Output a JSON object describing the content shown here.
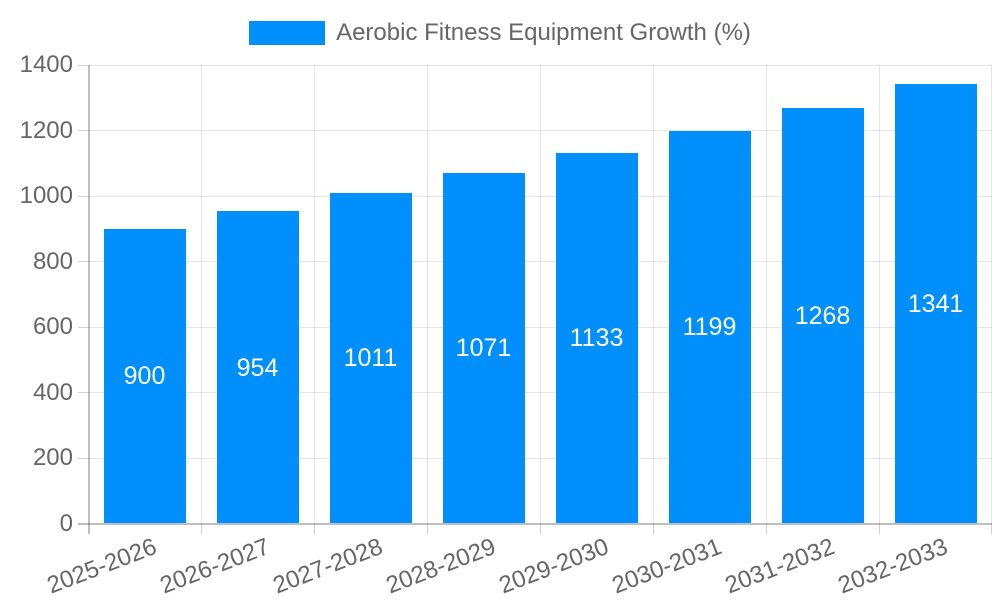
{
  "chart_data": {
    "type": "bar",
    "title": "Aerobic Fitness Equipment Growth (%)",
    "legend": {
      "position": "top",
      "label": "Aerobic Fitness Equipment Growth (%)"
    },
    "categories": [
      "2025-2026",
      "2026-2027",
      "2027-2028",
      "2028-2029",
      "2029-2030",
      "2030-2031",
      "2031-2032",
      "2032-2033"
    ],
    "values": [
      900,
      954,
      1011,
      1071,
      1133,
      1199,
      1268,
      1341
    ],
    "value_labels": [
      "900",
      "954",
      "1011",
      "1071",
      "1133",
      "1199",
      "1268",
      "1341"
    ],
    "xlabel": "",
    "ylabel": "",
    "y_ticks": [
      0,
      200,
      400,
      600,
      800,
      1000,
      1200,
      1400
    ],
    "ylim": [
      0,
      1400
    ],
    "grid": "on",
    "x_label_rotation_deg": -21,
    "colors": {
      "bar": "#008ffb",
      "value_label": "#ffffff",
      "axis_label": "#666666",
      "gridline": "rgba(0,0,0,0.1)",
      "axis_line": "rgba(0,0,0,0.25)",
      "background": "#ffffff"
    }
  }
}
